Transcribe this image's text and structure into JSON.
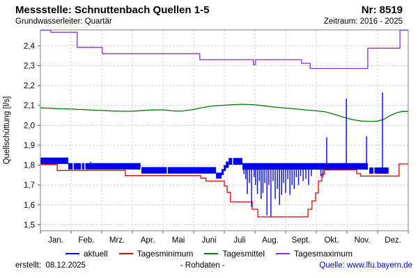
{
  "header": {
    "title": "Messstelle: Schnuttenbach Quellen 1-5",
    "number": "Nr: 8519",
    "aquifer": "Grundwasserleiter: Quartär",
    "period": "Zeitraum: 2016 - 2025"
  },
  "legend": {
    "items": [
      {
        "label": "aktuell",
        "color": "#0000ee"
      },
      {
        "label": "Tagesminimum",
        "color": "#e60000"
      },
      {
        "label": "Tagesmittel",
        "color": "#007700"
      },
      {
        "label": "Tagesmaximum",
        "color": "#8a2be2"
      }
    ]
  },
  "footer": {
    "created_label": "erstellt:",
    "created_date": "08.12.2025",
    "center": "- Rohdaten -",
    "source": "Quelle: www.lfu.bayern.de"
  },
  "chart_data": {
    "type": "line",
    "title": "Messstelle: Schnuttenbach Quellen 1-5",
    "xlabel": "",
    "ylabel": "Quellschüttung [l/s]",
    "grid": true,
    "x_axis": {
      "months": [
        "Jan.",
        "Feb.",
        "Mrz.",
        "Apr.",
        "Mai",
        "Juni",
        "Juli",
        "Aug.",
        "Sept.",
        "Okt.",
        "Nov.",
        "Dez."
      ]
    },
    "y_axis": {
      "label": "Quellschüttung [l/s]",
      "min": 1.47,
      "max": 2.48,
      "ticks": [
        {
          "v": 1.5,
          "label": "1,5"
        },
        {
          "v": 1.6,
          "label": "1,6"
        },
        {
          "v": 1.7,
          "label": "1,7"
        },
        {
          "v": 1.8,
          "label": "1,8"
        },
        {
          "v": 1.9,
          "label": "1,9"
        },
        {
          "v": 2.0,
          "label": "2,0"
        },
        {
          "v": 2.1,
          "label": "2,1"
        },
        {
          "v": 2.2,
          "label": "2,2"
        },
        {
          "v": 2.3,
          "label": "2,3"
        },
        {
          "v": 2.4,
          "label": "2,4"
        }
      ]
    },
    "series": {
      "aktuell": {
        "name": "aktuell",
        "color": "#0000ee",
        "note": "15-min Rohdaten als Band (Monatseinheiten 0-12, [von, bis, min, max])",
        "bands": [
          [
            0,
            0.91,
            1.806,
            1.838
          ],
          [
            0.91,
            3.27,
            1.778,
            1.81
          ],
          [
            3.27,
            5.73,
            1.757,
            1.79
          ],
          [
            5.73,
            5.91,
            1.732,
            1.762
          ],
          [
            5.91,
            5.98,
            1.75,
            1.78
          ],
          [
            5.98,
            6.05,
            1.77,
            1.8
          ],
          [
            6.05,
            6.14,
            1.786,
            1.818
          ],
          [
            6.14,
            6.59,
            1.802,
            1.836
          ],
          [
            6.59,
            10.68,
            1.777,
            1.81
          ],
          [
            10.73,
            11.36,
            1.757,
            1.788
          ]
        ],
        "gaps": [
          [
            1.07,
            1.778,
            1.81
          ],
          [
            1.34,
            1.778,
            1.81
          ],
          [
            1.45,
            1.778,
            1.81
          ],
          [
            3.28,
            1.757,
            1.79
          ],
          [
            4.14,
            1.757,
            1.79
          ],
          [
            6.27,
            1.802,
            1.836
          ],
          [
            10.88,
            1.757,
            1.788
          ]
        ],
        "spikes": [
          [
            1.64,
            1.79,
            1.817
          ],
          [
            6.64,
            1.8,
            1.755
          ],
          [
            6.7,
            1.8,
            1.73
          ],
          [
            6.75,
            1.8,
            1.655
          ],
          [
            6.82,
            1.8,
            1.71
          ],
          [
            6.89,
            1.8,
            1.59
          ],
          [
            6.97,
            1.8,
            1.74
          ],
          [
            7.02,
            1.8,
            1.7
          ],
          [
            7.08,
            1.8,
            1.655
          ],
          [
            7.14,
            1.8,
            1.72
          ],
          [
            7.2,
            1.8,
            1.63
          ],
          [
            7.26,
            1.8,
            1.66
          ],
          [
            7.32,
            1.8,
            1.71
          ],
          [
            7.39,
            1.8,
            1.548
          ],
          [
            7.45,
            1.8,
            1.7
          ],
          [
            7.52,
            1.8,
            1.542
          ],
          [
            7.59,
            1.8,
            1.72
          ],
          [
            7.66,
            1.8,
            1.63
          ],
          [
            7.73,
            1.8,
            1.68
          ],
          [
            7.8,
            1.8,
            1.6
          ],
          [
            7.87,
            1.8,
            1.65
          ],
          [
            7.93,
            1.8,
            1.71
          ],
          [
            8.0,
            1.8,
            1.66
          ],
          [
            8.07,
            1.8,
            1.73
          ],
          [
            8.14,
            1.8,
            1.65
          ],
          [
            8.21,
            1.8,
            1.7
          ],
          [
            8.28,
            1.8,
            1.68
          ],
          [
            8.35,
            1.8,
            1.74
          ],
          [
            8.42,
            1.8,
            1.7
          ],
          [
            8.49,
            1.8,
            1.745
          ],
          [
            8.57,
            1.8,
            1.72
          ],
          [
            8.66,
            1.8,
            1.73
          ],
          [
            8.75,
            1.8,
            1.7
          ],
          [
            8.84,
            1.8,
            1.745
          ],
          [
            9.15,
            1.8,
            1.745
          ],
          [
            9.22,
            1.8,
            1.74
          ],
          [
            9.34,
            1.8,
            1.94
          ],
          [
            9.98,
            1.8,
            2.135
          ],
          [
            10.64,
            1.8,
            1.945
          ],
          [
            11.16,
            1.78,
            2.165
          ]
        ]
      },
      "tagesminimum": {
        "name": "Tagesminimum",
        "color": "#e60000",
        "steps": [
          [
            0,
            0.55,
            1.803
          ],
          [
            0.55,
            2.77,
            1.773
          ],
          [
            2.77,
            5.23,
            1.747
          ],
          [
            5.23,
            5.4,
            1.735
          ],
          [
            5.4,
            6.0,
            1.72
          ],
          [
            6.0,
            6.09,
            1.695
          ],
          [
            6.09,
            6.2,
            1.663
          ],
          [
            6.2,
            6.91,
            1.615
          ],
          [
            6.91,
            7.09,
            1.578
          ],
          [
            7.09,
            8.73,
            1.54
          ],
          [
            8.73,
            8.86,
            1.578
          ],
          [
            8.86,
            8.98,
            1.62
          ],
          [
            8.98,
            9.07,
            1.66
          ],
          [
            9.07,
            9.18,
            1.72
          ],
          [
            9.18,
            9.27,
            1.755
          ],
          [
            9.27,
            10.32,
            1.776
          ],
          [
            10.32,
            10.45,
            1.757
          ],
          [
            10.45,
            11.7,
            1.745
          ],
          [
            11.7,
            12,
            1.806
          ]
        ]
      },
      "tagesmittel": {
        "name": "Tagesmittel",
        "color": "#007700",
        "points": [
          [
            0,
            2.088
          ],
          [
            0.3,
            2.086
          ],
          [
            0.5,
            2.084
          ],
          [
            1,
            2.082
          ],
          [
            1.5,
            2.078
          ],
          [
            2,
            2.075
          ],
          [
            2.3,
            2.072
          ],
          [
            2.6,
            2.071
          ],
          [
            3,
            2.071
          ],
          [
            3.3,
            2.074
          ],
          [
            3.6,
            2.077
          ],
          [
            4,
            2.078
          ],
          [
            4.3,
            2.073
          ],
          [
            4.6,
            2.071
          ],
          [
            5,
            2.08
          ],
          [
            5.3,
            2.09
          ],
          [
            5.6,
            2.097
          ],
          [
            6,
            2.101
          ],
          [
            6.3,
            2.104
          ],
          [
            6.6,
            2.106
          ],
          [
            7,
            2.103
          ],
          [
            7.3,
            2.098
          ],
          [
            7.6,
            2.092
          ],
          [
            8,
            2.087
          ],
          [
            8.3,
            2.083
          ],
          [
            8.6,
            2.078
          ],
          [
            9,
            2.073
          ],
          [
            9.3,
            2.068
          ],
          [
            9.6,
            2.055
          ],
          [
            9.9,
            2.04
          ],
          [
            10.2,
            2.028
          ],
          [
            10.5,
            2.021
          ],
          [
            10.8,
            2.02
          ],
          [
            11,
            2.021
          ],
          [
            11.2,
            2.03
          ],
          [
            11.4,
            2.048
          ],
          [
            11.6,
            2.062
          ],
          [
            11.8,
            2.07
          ],
          [
            12,
            2.07
          ]
        ]
      },
      "tagesmaximum": {
        "name": "Tagesmaximum",
        "color": "#8a2be2",
        "steps": [
          [
            0,
            0.34,
            2.478
          ],
          [
            0.34,
            1.2,
            2.468
          ],
          [
            1.2,
            2.02,
            2.392
          ],
          [
            2.02,
            5.2,
            2.36
          ],
          [
            5.2,
            6.95,
            2.33
          ],
          [
            6.95,
            7.02,
            2.306
          ],
          [
            7.02,
            8.52,
            2.33
          ],
          [
            8.52,
            8.8,
            2.312
          ],
          [
            8.8,
            10.68,
            2.286
          ],
          [
            10.68,
            11.73,
            2.388
          ],
          [
            11.73,
            12,
            2.478
          ]
        ]
      }
    }
  }
}
